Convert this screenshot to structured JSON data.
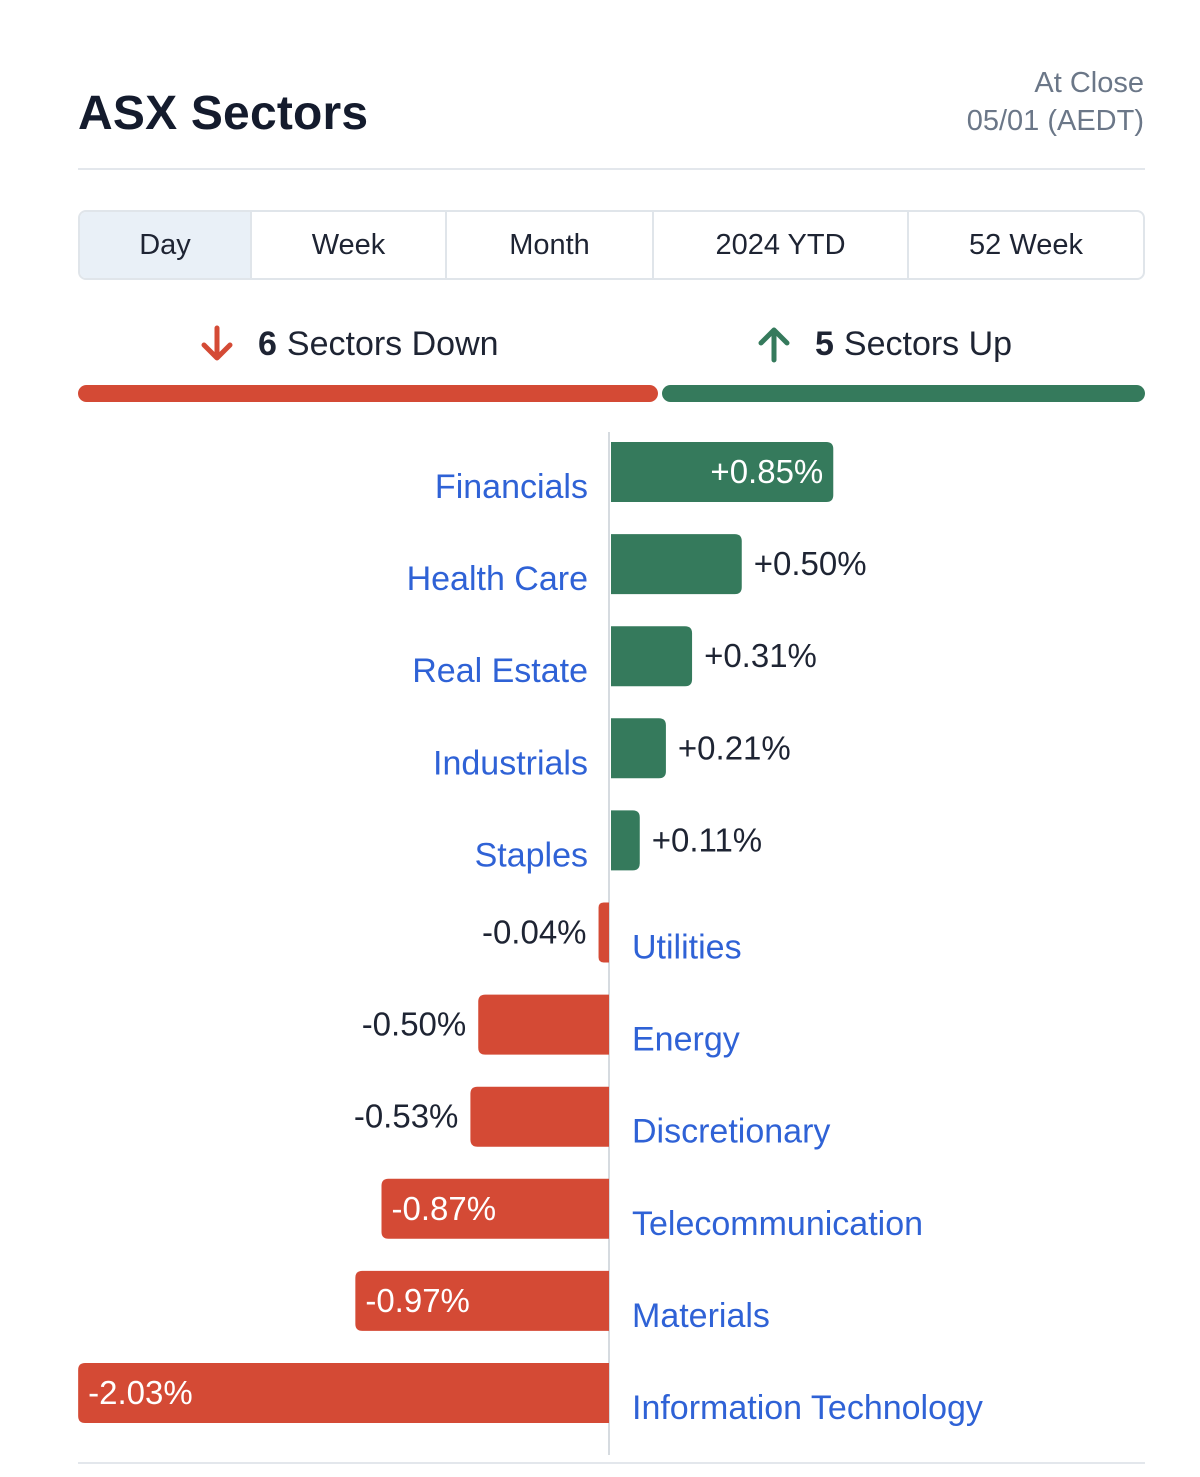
{
  "header": {
    "title": "ASX Sectors",
    "status": "At Close",
    "date": "05/01 (AEDT)"
  },
  "tabs": [
    {
      "label": "Day",
      "active": true
    },
    {
      "label": "Week",
      "active": false
    },
    {
      "label": "Month",
      "active": false
    },
    {
      "label": "2024 YTD",
      "active": false
    },
    {
      "label": "52 Week",
      "active": false
    }
  ],
  "summary": {
    "down_count": "6",
    "down_label": "Sectors Down",
    "up_count": "5",
    "up_label": "Sectors Up"
  },
  "colors": {
    "up": "#357a5c",
    "down": "#d44a35",
    "label": "#2f62d6",
    "value": "#1e2433"
  },
  "icons": {
    "down": "arrow-down-icon",
    "up": "arrow-up-icon"
  },
  "chart_data": {
    "type": "bar",
    "orientation": "horizontal-diverging",
    "unit": "%",
    "categories": [
      "Financials",
      "Health Care",
      "Real Estate",
      "Industrials",
      "Staples",
      "Utilities",
      "Energy",
      "Discretionary",
      "Telecommunication",
      "Materials",
      "Information Technology"
    ],
    "values": [
      0.85,
      0.5,
      0.31,
      0.21,
      0.11,
      -0.04,
      -0.5,
      -0.53,
      -0.87,
      -0.97,
      -2.03
    ],
    "value_labels": [
      "+0.85%",
      "+0.50%",
      "+0.31%",
      "+0.21%",
      "+0.11%",
      "-0.04%",
      "-0.50%",
      "-0.53%",
      "-0.87%",
      "-0.97%",
      "-2.03%"
    ]
  }
}
